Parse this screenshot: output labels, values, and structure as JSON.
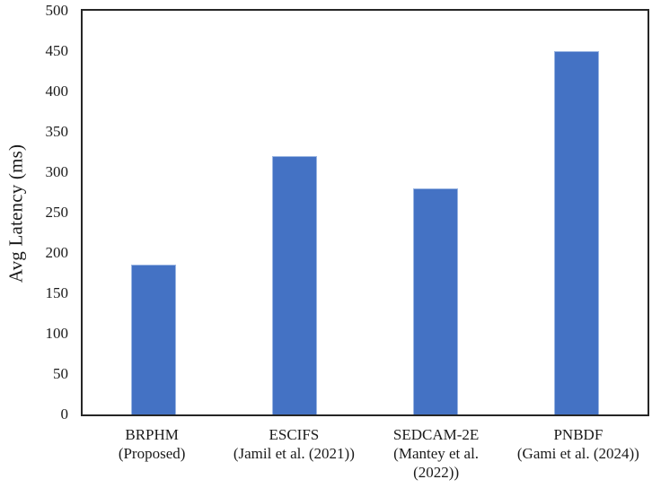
{
  "chart_data": {
    "type": "bar",
    "categories": [
      "BRPHM\n(Proposed)",
      "ESCIFS\n(Jamil et al. (2021))",
      "SEDCAM-2E\n(Mantey et al.\n(2022))",
      "PNBDF\n(Gami et al. (2024))"
    ],
    "values": [
      185,
      320,
      280,
      450
    ],
    "title": "",
    "xlabel": "",
    "ylabel": "Avg Latency (ms)",
    "ylim": [
      0,
      500
    ],
    "ytick_step": 50,
    "ytick_labels": [
      "0",
      "50",
      "100",
      "150",
      "200",
      "250",
      "300",
      "350",
      "400",
      "450",
      "500"
    ],
    "grid": false,
    "legend_position": "none",
    "bar_color": "#4472C4",
    "bar_border_color": "#9ab5e2",
    "axis_color": "#262626",
    "text_color": "#1a1a1a",
    "background_color": "#ffffff"
  }
}
